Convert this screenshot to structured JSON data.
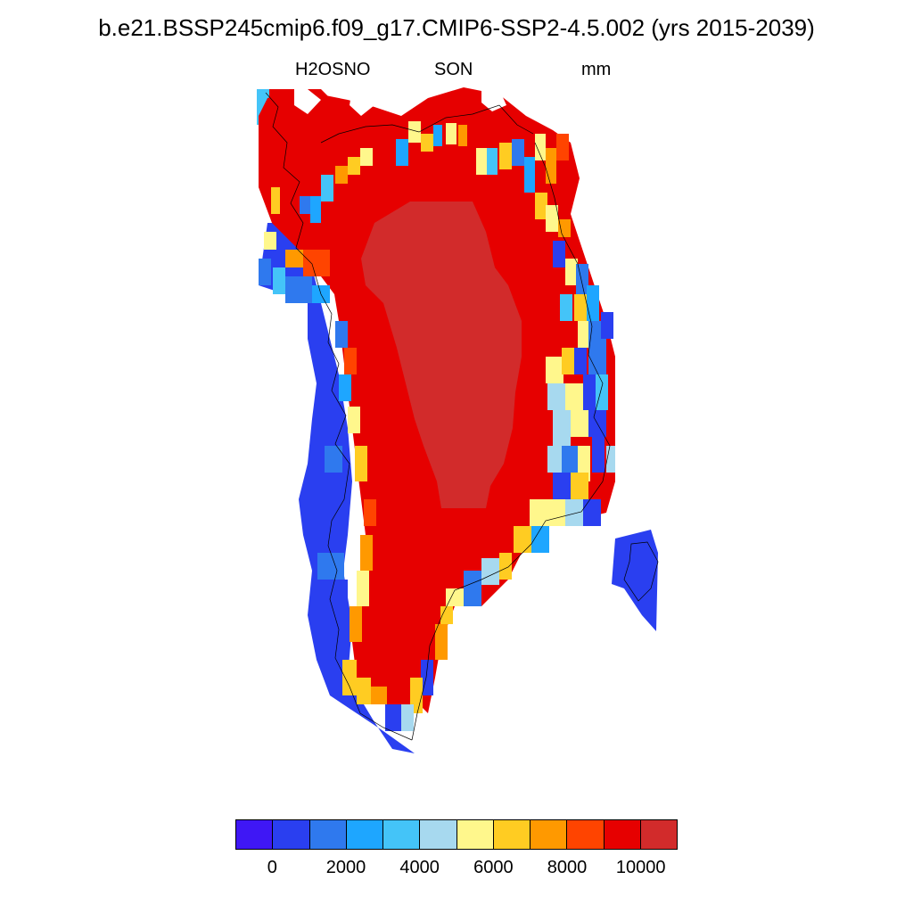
{
  "title": "b.e21.BSSP245cmip6.f09_g17.CMIP6-SSP2-4.5.002 (yrs 2015-2039)",
  "subtitle": {
    "variable": "H2OSNO",
    "season": "SON",
    "units": "mm"
  },
  "region": "Greenland",
  "colorbar": {
    "colors": [
      "#3f17f5",
      "#2a3ff0",
      "#2f79ee",
      "#1ea6ff",
      "#44c4f8",
      "#a7d9ef",
      "#fff78c",
      "#ffcc22",
      "#ff9900",
      "#ff4400",
      "#e60000",
      "#d22b2b"
    ],
    "labels": [
      "0",
      "2000",
      "4000",
      "6000",
      "8000",
      "10000"
    ],
    "levels": [
      0,
      1000,
      2000,
      3000,
      4000,
      5000,
      6000,
      7000,
      8000,
      9000,
      10000
    ]
  }
}
